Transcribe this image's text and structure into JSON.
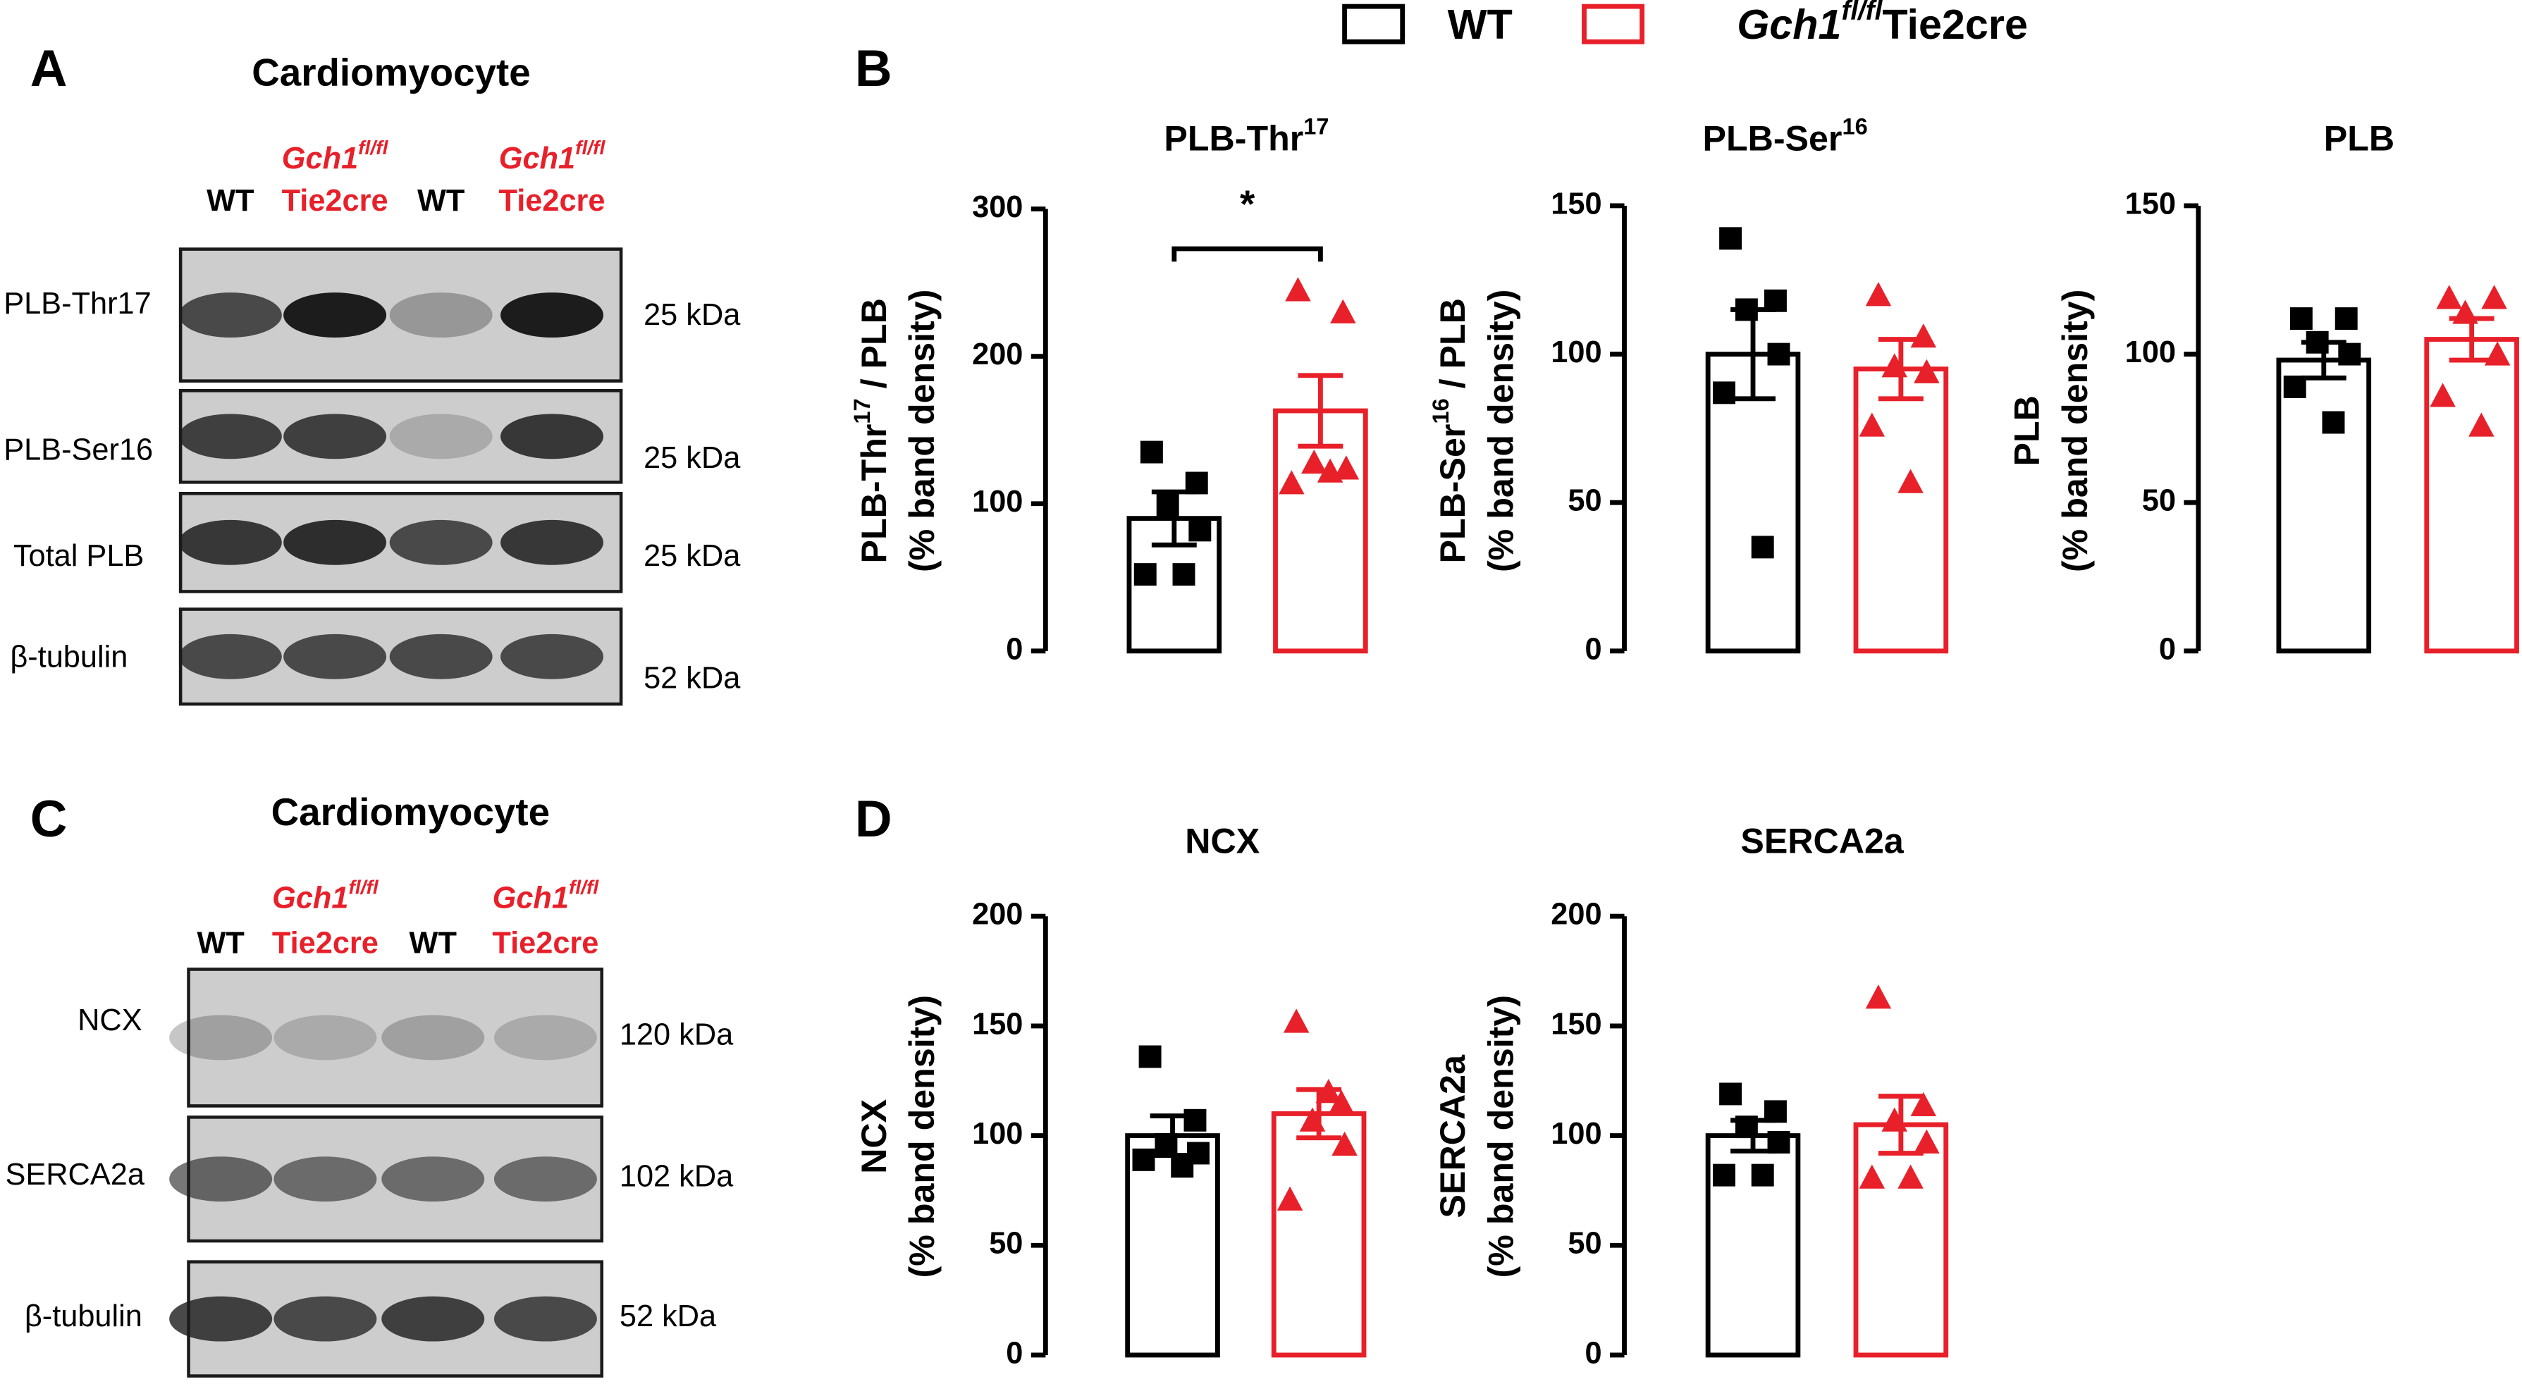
{
  "panel_labels": [
    "A",
    "B",
    "C",
    "D"
  ],
  "legend": [
    {
      "label": [
        "WT"
      ],
      "color": "#000000"
    },
    {
      "label": [
        "Gch1",
        "fl/fl",
        "Tie2cre"
      ],
      "color": "#e8202a"
    }
  ],
  "blots": [
    {
      "title": "Cardiomyocyte",
      "lanes": [
        [
          "WT"
        ],
        [
          "Gch1",
          "fl/fl",
          "Tie2cre"
        ],
        [
          "WT"
        ],
        [
          "Gch1",
          "fl/fl",
          "Tie2cre"
        ]
      ],
      "rows": [
        {
          "label": "PLB-Thr17",
          "size": "25 kDa"
        },
        {
          "label": "PLB-Ser16",
          "size": "25 kDa"
        },
        {
          "label": "Total PLB",
          "size": "25 kDa"
        },
        {
          "label": "β-tubulin",
          "size": "52 kDa"
        }
      ]
    },
    {
      "title": "Cardiomyocyte",
      "lanes": [
        [
          "WT"
        ],
        [
          "Gch1",
          "fl/fl",
          "Tie2cre"
        ],
        [
          "WT"
        ],
        [
          "Gch1",
          "fl/fl",
          "Tie2cre"
        ]
      ],
      "rows": [
        {
          "label": "NCX",
          "size": "120 kDa"
        },
        {
          "label": "SERCA2a",
          "size": "102 kDa"
        },
        {
          "label": "β-tubulin",
          "size": "52 kDa"
        }
      ]
    }
  ],
  "chart_data": [
    {
      "type": "bar",
      "title": [
        "PLB-Thr",
        "17"
      ],
      "ylabel": [
        [
          "PLB-Thr",
          "17",
          " / PLB"
        ],
        [
          "(% band density)"
        ]
      ],
      "ylim": [
        0,
        300
      ],
      "yticks": [
        0,
        100,
        200,
        300
      ],
      "series": [
        {
          "color": "#000000",
          "marker": "square",
          "mean": 90,
          "sem": 18,
          "values": [
            135,
            114,
            99,
            82,
            52,
            52
          ]
        },
        {
          "color": "#e8202a",
          "marker": "triangle",
          "mean": 163,
          "sem": 24,
          "values": [
            245,
            230,
            128,
            124,
            114,
            122
          ]
        }
      ],
      "annotations": [
        {
          "text": "*",
          "y": 273
        }
      ]
    },
    {
      "type": "bar",
      "title": [
        "PLB-Ser",
        "16"
      ],
      "ylabel": [
        [
          "PLB-Ser",
          "16",
          " / PLB"
        ],
        [
          "(% band density)"
        ]
      ],
      "ylim": [
        0,
        150
      ],
      "yticks": [
        0,
        50,
        100,
        150
      ],
      "series": [
        {
          "color": "#000000",
          "marker": "square",
          "mean": 100,
          "sem": 15,
          "values": [
            139,
            118,
            115,
            100,
            87,
            35
          ]
        },
        {
          "color": "#e8202a",
          "marker": "triangle",
          "mean": 95,
          "sem": 10,
          "values": [
            120,
            106,
            96,
            94,
            76,
            57
          ]
        }
      ]
    },
    {
      "type": "bar",
      "title": [
        "PLB"
      ],
      "ylabel": [
        [
          "PLB"
        ],
        [
          "(% band density)"
        ]
      ],
      "ylim": [
        0,
        150
      ],
      "yticks": [
        0,
        50,
        100,
        150
      ],
      "series": [
        {
          "color": "#000000",
          "marker": "square",
          "mean": 98,
          "sem": 6,
          "values": [
            112,
            112,
            104,
            100,
            89,
            77
          ]
        },
        {
          "color": "#e8202a",
          "marker": "triangle",
          "mean": 105,
          "sem": 7,
          "values": [
            119,
            119,
            114,
            100,
            86,
            76
          ]
        }
      ]
    },
    {
      "type": "bar",
      "title": [
        "NCX"
      ],
      "ylabel": [
        [
          "NCX"
        ],
        [
          "(% band density)"
        ]
      ],
      "ylim": [
        0,
        200
      ],
      "yticks": [
        0,
        50,
        100,
        150,
        200
      ],
      "series": [
        {
          "color": "#000000",
          "marker": "square",
          "mean": 100,
          "sem": 9,
          "values": [
            136,
            107,
            96,
            92,
            89,
            86
          ]
        },
        {
          "color": "#e8202a",
          "marker": "triangle",
          "mean": 110,
          "sem": 11,
          "values": [
            152,
            115,
            107,
            96,
            71,
            120
          ]
        }
      ]
    },
    {
      "type": "bar",
      "title": [
        "SERCA2a"
      ],
      "ylabel": [
        [
          "SERCA2a"
        ],
        [
          "(% band density)"
        ]
      ],
      "ylim": [
        0,
        200
      ],
      "yticks": [
        0,
        50,
        100,
        150,
        200
      ],
      "series": [
        {
          "color": "#000000",
          "marker": "square",
          "mean": 100,
          "sem": 7,
          "values": [
            119,
            111,
            104,
            97,
            82,
            82
          ]
        },
        {
          "color": "#e8202a",
          "marker": "triangle",
          "mean": 105,
          "sem": 13,
          "values": [
            163,
            114,
            107,
            97,
            81,
            81
          ]
        }
      ]
    }
  ]
}
